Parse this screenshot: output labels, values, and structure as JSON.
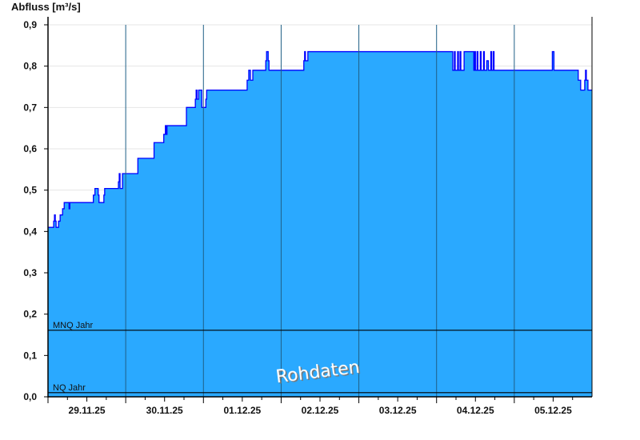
{
  "chart_data": {
    "type": "area",
    "title": "",
    "xlabel": "",
    "ylabel": "Abfluss [m³/s]",
    "ylim": [
      0,
      0.9
    ],
    "yticks": [
      "0,0",
      "0,1",
      "0,2",
      "0,3",
      "0,4",
      "0,5",
      "0,6",
      "0,7",
      "0,8",
      "0,9"
    ],
    "xlim": [
      "29.11.25 00:00",
      "06.12.25 00:00"
    ],
    "xticks": [
      "29.11.25",
      "30.11.25",
      "01.12.25",
      "02.12.25",
      "03.12.25",
      "04.12.25",
      "05.12.25"
    ],
    "grid": true,
    "interpolation": "step",
    "fill_color": "#2aa9ff",
    "line_color": "#0000ff",
    "series": [
      {
        "points": [
          [
            "29.11.25 00:00",
            0.41
          ],
          [
            "29.11.25 01:45",
            0.425
          ],
          [
            "29.11.25 02:00",
            0.44
          ],
          [
            "29.11.25 02:15",
            0.425
          ],
          [
            "29.11.25 02:30",
            0.41
          ],
          [
            "29.11.25 03:15",
            0.425
          ],
          [
            "29.11.25 03:45",
            0.44
          ],
          [
            "29.11.25 04:30",
            0.455
          ],
          [
            "29.11.25 05:00",
            0.47
          ],
          [
            "29.11.25 06:30",
            0.455
          ],
          [
            "29.11.25 06:45",
            0.47
          ],
          [
            "29.11.25 14:00",
            0.488
          ],
          [
            "29.11.25 14:30",
            0.504
          ],
          [
            "29.11.25 15:30",
            0.488
          ],
          [
            "29.11.25 15:45",
            0.47
          ],
          [
            "29.11.25 17:15",
            0.488
          ],
          [
            "29.11.25 17:30",
            0.504
          ],
          [
            "29.11.25 21:45",
            0.52
          ],
          [
            "29.11.25 22:00",
            0.54
          ],
          [
            "29.11.25 22:15",
            0.504
          ],
          [
            "29.11.25 23:00",
            0.54
          ],
          [
            "30.11.25 03:45",
            0.577
          ],
          [
            "30.11.25 08:45",
            0.615
          ],
          [
            "30.11.25 11:45",
            0.635
          ],
          [
            "30.11.25 12:15",
            0.656
          ],
          [
            "30.11.25 12:30",
            0.635
          ],
          [
            "30.11.25 12:45",
            0.656
          ],
          [
            "30.11.25 18:45",
            0.7
          ],
          [
            "30.11.25 21:30",
            0.72
          ],
          [
            "30.11.25 21:45",
            0.742
          ],
          [
            "30.11.25 22:00",
            0.72
          ],
          [
            "30.11.25 22:30",
            0.742
          ],
          [
            "30.11.25 23:30",
            0.7
          ],
          [
            "01.12.25 00:45",
            0.72
          ],
          [
            "01.12.25 01:00",
            0.742
          ],
          [
            "01.12.25 13:30",
            0.766
          ],
          [
            "01.12.25 14:00",
            0.79
          ],
          [
            "01.12.25 14:30",
            0.766
          ],
          [
            "01.12.25 15:15",
            0.79
          ],
          [
            "01.12.25 19:15",
            0.813
          ],
          [
            "01.12.25 19:30",
            0.835
          ],
          [
            "01.12.25 20:00",
            0.813
          ],
          [
            "01.12.25 20:15",
            0.79
          ],
          [
            "02.12.25 07:00",
            0.813
          ],
          [
            "02.12.25 07:15",
            0.835
          ],
          [
            "02.12.25 07:30",
            0.813
          ],
          [
            "02.12.25 08:15",
            0.835
          ],
          [
            "04.12.25 05:00",
            0.79
          ],
          [
            "04.12.25 05:30",
            0.835
          ],
          [
            "04.12.25 05:45",
            0.79
          ],
          [
            "04.12.25 06:30",
            0.835
          ],
          [
            "04.12.25 06:45",
            0.79
          ],
          [
            "04.12.25 07:15",
            0.835
          ],
          [
            "04.12.25 07:30",
            0.79
          ],
          [
            "04.12.25 08:30",
            0.835
          ],
          [
            "04.12.25 11:30",
            0.79
          ],
          [
            "04.12.25 11:45",
            0.835
          ],
          [
            "04.12.25 12:00",
            0.79
          ],
          [
            "04.12.25 12:30",
            0.835
          ],
          [
            "04.12.25 12:45",
            0.79
          ],
          [
            "04.12.25 13:30",
            0.835
          ],
          [
            "04.12.25 13:45",
            0.79
          ],
          [
            "04.12.25 14:30",
            0.835
          ],
          [
            "04.12.25 14:45",
            0.79
          ],
          [
            "04.12.25 15:30",
            0.813
          ],
          [
            "04.12.25 16:00",
            0.79
          ],
          [
            "04.12.25 16:45",
            0.835
          ],
          [
            "04.12.25 17:00",
            0.79
          ],
          [
            "04.12.25 17:30",
            0.835
          ],
          [
            "04.12.25 17:45",
            0.79
          ],
          [
            "05.12.25 11:45",
            0.835
          ],
          [
            "05.12.25 12:15",
            0.79
          ],
          [
            "05.12.25 19:45",
            0.766
          ],
          [
            "05.12.25 20:30",
            0.742
          ],
          [
            "05.12.25 21:45",
            0.766
          ],
          [
            "05.12.25 22:00",
            0.79
          ],
          [
            "05.12.25 22:15",
            0.766
          ],
          [
            "05.12.25 22:45",
            0.742
          ],
          [
            "06.12.25 00:00",
            0.742
          ]
        ]
      }
    ],
    "reference_lines": [
      {
        "label": "MNQ Jahr",
        "value": 0.161
      },
      {
        "label": "NQ Jahr",
        "value": 0.01
      }
    ],
    "watermark": "Rohdaten"
  }
}
